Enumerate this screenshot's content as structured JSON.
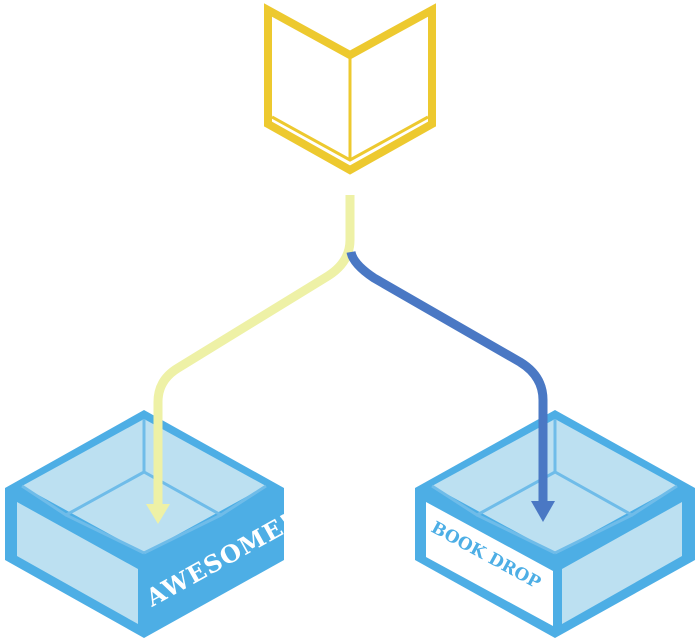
{
  "labels": {
    "left_box": "AWESOME!",
    "right_box": "BOOK DROP"
  },
  "icons": {
    "book": "open-book-icon",
    "left_box": "box-icon",
    "right_box": "box-icon"
  },
  "colors": {
    "book": "#EDC92F",
    "box_outline": "#4DAEE5",
    "box_fill": "#BCE0F1",
    "box_inner_line": "#6FBCE9",
    "path_left": "#EEF1A6",
    "path_right": "#4A78C4",
    "left_label_text": "#ffffff",
    "right_label_text": "#4DAEE5",
    "right_label_plate": "#ffffff"
  }
}
